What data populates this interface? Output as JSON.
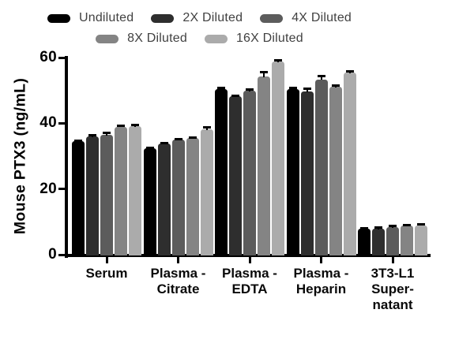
{
  "chart_data": {
    "type": "bar",
    "title": "",
    "xlabel": "",
    "ylabel": "Mouse PTX3 (ng/mL)",
    "ylim": [
      0,
      60
    ],
    "yticks": [
      0,
      20,
      40,
      60
    ],
    "grid": false,
    "legend_position": "top",
    "categories": [
      [
        "Serum"
      ],
      [
        "Plasma -",
        "Citrate"
      ],
      [
        "Plasma -",
        "EDTA"
      ],
      [
        "Plasma -",
        "Heparin"
      ],
      [
        "3T3-L1",
        "Super-",
        "natant"
      ]
    ],
    "category_names": [
      "Serum",
      "Plasma - Citrate",
      "Plasma - EDTA",
      "Plasma - Heparin",
      "3T3-L1 Supernatant"
    ],
    "series": [
      {
        "name": "Undiluted",
        "color": "#000000",
        "values": [
          34.5,
          32.5,
          50.5,
          50.3,
          8.0
        ],
        "errors": [
          0.4,
          0.2,
          0.5,
          0.7,
          0.2
        ]
      },
      {
        "name": "2X Diluted",
        "color": "#2e2e2e",
        "values": [
          36.0,
          33.8,
          48.3,
          49.8,
          8.0
        ],
        "errors": [
          0.5,
          0.3,
          0.3,
          0.9,
          0.3
        ]
      },
      {
        "name": "4X Diluted",
        "color": "#5c5c5c",
        "values": [
          36.4,
          35.0,
          50.0,
          53.4,
          8.5
        ],
        "errors": [
          0.9,
          0.4,
          0.4,
          1.1,
          0.4
        ]
      },
      {
        "name": "8X Diluted",
        "color": "#848484",
        "values": [
          39.0,
          35.5,
          54.2,
          51.2,
          8.8
        ],
        "errors": [
          0.4,
          0.3,
          1.6,
          0.4,
          0.4
        ]
      },
      {
        "name": "16X Diluted",
        "color": "#ababab",
        "values": [
          39.2,
          38.2,
          58.9,
          55.5,
          9.0
        ],
        "errors": [
          0.4,
          0.6,
          0.5,
          0.4,
          0.4
        ]
      }
    ]
  }
}
